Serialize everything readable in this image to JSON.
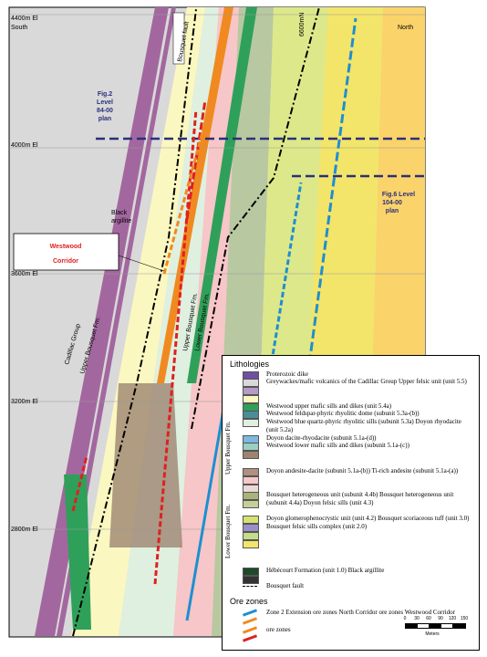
{
  "labels": {
    "south": "South",
    "north": "North",
    "grid_top": "6600mN",
    "elevations": [
      "4400m El",
      "4000m El",
      "3600m El",
      "3200m El",
      "2800m El"
    ],
    "bousquet_fault": "Bousquet fault",
    "fig2": [
      "Fig.2",
      "Level",
      "84-00",
      "plan"
    ],
    "fig6": [
      "Fig.6 Level",
      "104-00",
      "plan"
    ],
    "black_argillite": [
      "Black",
      "argillite"
    ],
    "westwood_corridor": [
      "Westwood",
      "Corridor"
    ],
    "cadillac": "Cadillac Group",
    "upper_bousquet_left": "Upper Bousquet Fm.",
    "upper_bousquet": "Upper Bousquet Fm.",
    "lower_bousquet": "Lower Bousquet Fm."
  },
  "legend": {
    "title": "Lithologies",
    "group_upper": "Upper Bousquet Fm.",
    "group_lower": "Lower Bousquet Fm.",
    "lithologies": [
      {
        "text": "Proterozoic dike",
        "colors": [
          "#6e4fa0"
        ]
      },
      {
        "text": "Greywackes/mafic volcanics of the Cadillac Group   Upper felsic unit (unit 5.5)",
        "colors": [
          "#d9d9d9",
          "#b79ac5",
          "#fbf7c0"
        ]
      },
      {
        "text": "Westwood upper mafic sills and dikes (unit 5.4a)",
        "colors": [
          "#2fa05a"
        ]
      },
      {
        "text": "Westwood feldspar-phyric rhyolitic dome (subunit 5.3a-(b))",
        "colors": [
          "#4c8c9a"
        ]
      },
      {
        "text": "Westwood blue quartz-phyric rhyolitic sills (subunit 5.3a) Doyon rhyodacite (unit 5.2a)",
        "colors": [
          "#dff0e0"
        ]
      },
      {
        "text": "Doyon dacite-rhyodacite (subunit 5.1a-(d))",
        "colors": [
          "#7fb7e0"
        ]
      },
      {
        "text": "Westwood lower mafic sills and dikes (subunit 5.1a-(c))",
        "colors": [
          "#9ad0c0",
          "#9c8470"
        ]
      },
      {
        "text": "Doyon andesite-dacite (subunit 5.1a-(b))   Ti-rich andesite (subunit 5.1a-(a))",
        "colors": [
          "#b09080",
          "#f7c6c8",
          "#e9d9d9"
        ]
      },
      {
        "text": "Bousquet heterogeneous unit (subunit 4.4b)   Bousquet heterogeneous unit (subunit 4.4a)   Doyon felsic sills (unit 4.3)",
        "colors": [
          "#a8b47a",
          "#c7cf98"
        ]
      },
      {
        "text": "Doyon glomerophenocrystic unit (unit 4.2)   Bousquet scoriaceous tuff (unit 3.0)   Bousquet felsic sills complex (unit 2.0)",
        "colors": [
          "#d8e070",
          "#9a8fc8",
          "#c5dc88",
          "#f3e56a"
        ]
      },
      {
        "text": "Hébécourt Formation (unit 1.0)   Black argillite",
        "colors": [
          "#1d4a2a",
          "#333333"
        ]
      },
      {
        "text": "Bousquet fault",
        "colors": []
      }
    ],
    "ore_title": "Ore zones",
    "ore_zones": [
      {
        "text": "Zone 2 Extension ore zones   North Corridor ore zones   Westwood Corridor",
        "colors": [
          "#1e8fd0",
          "#f08a20"
        ]
      },
      {
        "text": "ore zones",
        "colors": [
          "#f08a20",
          "#e02020"
        ]
      }
    ],
    "scale": [
      "0",
      "30",
      "60",
      "90",
      "120",
      "150"
    ],
    "scale_unit": "Meters"
  }
}
